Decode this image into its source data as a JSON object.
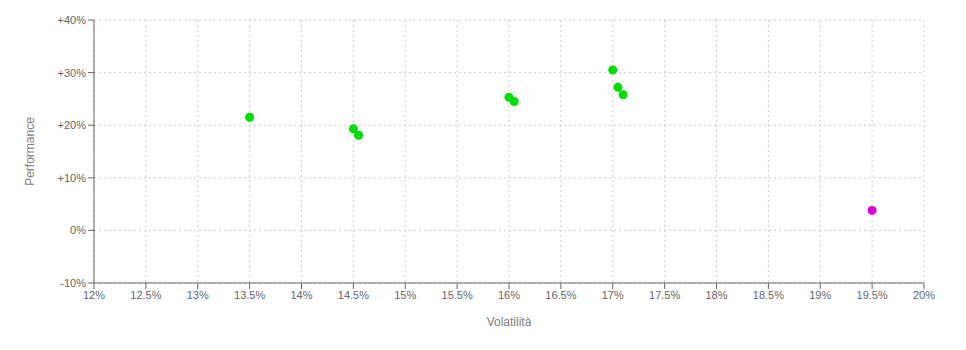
{
  "chart_data": {
    "type": "scatter",
    "xlabel": "Volatilità",
    "ylabel": "Performance",
    "xlim": [
      0.12,
      0.2
    ],
    "ylim": [
      -0.1,
      0.4
    ],
    "xticks": [
      {
        "value": 0.12,
        "label": "12%"
      },
      {
        "value": 0.125,
        "label": "12.5%"
      },
      {
        "value": 0.13,
        "label": "13%"
      },
      {
        "value": 0.135,
        "label": "13.5%"
      },
      {
        "value": 0.14,
        "label": "14%"
      },
      {
        "value": 0.145,
        "label": "14.5%"
      },
      {
        "value": 0.15,
        "label": "15%"
      },
      {
        "value": 0.155,
        "label": "15.5%"
      },
      {
        "value": 0.16,
        "label": "16%"
      },
      {
        "value": 0.165,
        "label": "16.5%"
      },
      {
        "value": 0.17,
        "label": "17%"
      },
      {
        "value": 0.175,
        "label": "17.5%"
      },
      {
        "value": 0.18,
        "label": "18%"
      },
      {
        "value": 0.185,
        "label": "18.5%"
      },
      {
        "value": 0.19,
        "label": "19%"
      },
      {
        "value": 0.195,
        "label": "19.5%"
      },
      {
        "value": 0.2,
        "label": "20%"
      }
    ],
    "yticks": [
      {
        "value": -0.1,
        "label": "-10%"
      },
      {
        "value": 0.0,
        "label": "0%"
      },
      {
        "value": 0.1,
        "label": "+10%"
      },
      {
        "value": 0.2,
        "label": "+20%"
      },
      {
        "value": 0.3,
        "label": "+30%"
      },
      {
        "value": 0.4,
        "label": "+40%"
      }
    ],
    "grid": true,
    "series": [
      {
        "color": "#00dd00",
        "x": [
          0.135,
          0.145,
          0.1455,
          0.16,
          0.1605,
          0.17,
          0.1705,
          0.171
        ],
        "values": [
          0.215,
          0.193,
          0.181,
          0.253,
          0.245,
          0.305,
          0.272,
          0.258
        ]
      },
      {
        "color": "#dd00dd",
        "x": [
          0.195
        ],
        "values": [
          0.038
        ]
      }
    ]
  }
}
